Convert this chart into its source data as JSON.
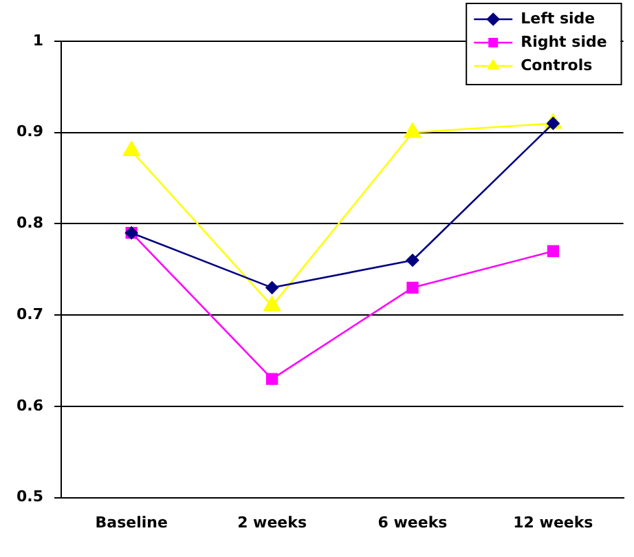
{
  "chart_data": {
    "type": "line",
    "categories": [
      "Baseline",
      "2 weeks",
      "6 weeks",
      "12 weeks"
    ],
    "series": [
      {
        "name": "Left side",
        "color": "#000080",
        "marker": "diamond",
        "values": [
          0.79,
          0.73,
          0.76,
          0.91
        ]
      },
      {
        "name": "Right side",
        "color": "#ff00ff",
        "marker": "square",
        "values": [
          0.79,
          0.63,
          0.73,
          0.77
        ]
      },
      {
        "name": "Controls",
        "color": "#ffff00",
        "marker": "triangle",
        "values": [
          0.88,
          0.71,
          0.9,
          0.91
        ]
      }
    ],
    "ylim": [
      0.5,
      1
    ],
    "yticks": [
      0.5,
      0.6,
      0.7,
      0.8,
      0.9,
      1
    ],
    "grid": "y",
    "legend": "top right",
    "line_style": "solid"
  }
}
